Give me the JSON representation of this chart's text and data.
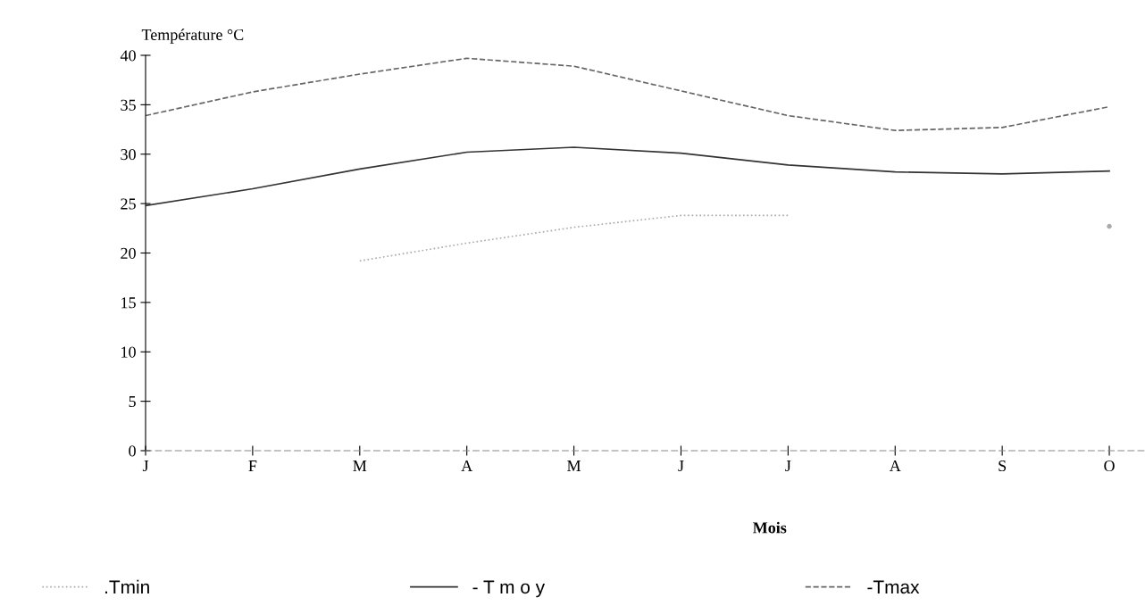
{
  "chart_data": {
    "type": "line",
    "ylabel": "Température °C",
    "xlabel": "Mois",
    "categories": [
      "J",
      "F",
      "M",
      "A",
      "M",
      "J",
      "J",
      "A",
      "S",
      "O"
    ],
    "series": [
      {
        "name": ".Tmin",
        "color": "#aaaaaa",
        "line_style": "dotted",
        "values": [
          null,
          null,
          19.2,
          21.0,
          22.6,
          23.8,
          23.8,
          null,
          null,
          22.7
        ]
      },
      {
        "name": "- T m o y",
        "color": "#333333",
        "line_style": "solid",
        "values": [
          24.8,
          26.5,
          28.5,
          30.2,
          30.7,
          30.1,
          28.9,
          28.2,
          28.0,
          28.3
        ]
      },
      {
        "name": "-Tmax",
        "color": "#666666",
        "line_style": "dashed",
        "values": [
          33.9,
          36.3,
          38.1,
          39.7,
          38.9,
          36.4,
          33.9,
          32.4,
          32.7,
          34.8
        ]
      }
    ],
    "ylim": [
      0,
      40
    ],
    "yticks": [
      0,
      5,
      10,
      15,
      20,
      25,
      30,
      35,
      40
    ],
    "grid": false,
    "legend": "bottom",
    "marker": "none"
  }
}
